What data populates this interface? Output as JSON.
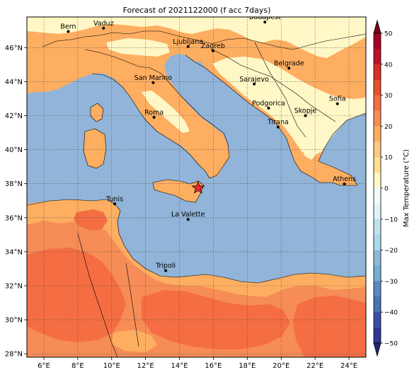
{
  "title": "Forecast of 2021122000 (f acc 7days)",
  "map": {
    "lon_range": [
      5,
      25
    ],
    "lat_range": [
      27.8,
      47.8
    ],
    "lon_ticks": [
      {
        "value": 6,
        "label": "6°E"
      },
      {
        "value": 8,
        "label": "8°E"
      },
      {
        "value": 10,
        "label": "10°E"
      },
      {
        "value": 12,
        "label": "12°E"
      },
      {
        "value": 14,
        "label": "14°E"
      },
      {
        "value": 16,
        "label": "16°E"
      },
      {
        "value": 18,
        "label": "18°E"
      },
      {
        "value": 20,
        "label": "20°E"
      },
      {
        "value": 22,
        "label": "22°E"
      },
      {
        "value": 24,
        "label": "24°E"
      }
    ],
    "lat_ticks": [
      {
        "value": 28,
        "label": "28°N"
      },
      {
        "value": 30,
        "label": "30°N"
      },
      {
        "value": 32,
        "label": "32°N"
      },
      {
        "value": 34,
        "label": "34°N"
      },
      {
        "value": 36,
        "label": "36°N"
      },
      {
        "value": 38,
        "label": "38°N"
      },
      {
        "value": 40,
        "label": "40°N"
      },
      {
        "value": 42,
        "label": "42°N"
      },
      {
        "value": 44,
        "label": "44°N"
      },
      {
        "value": 46,
        "label": "46°N"
      }
    ],
    "grid": true,
    "sea_color": "#91b4d8",
    "cities": [
      {
        "name": "Bern",
        "lon": 7.44,
        "lat": 46.95
      },
      {
        "name": "Vaduz",
        "lon": 9.52,
        "lat": 47.14
      },
      {
        "name": "Budapest",
        "lon": 19.04,
        "lat": 47.5
      },
      {
        "name": "Ljubljana",
        "lon": 14.51,
        "lat": 46.06
      },
      {
        "name": "Zagreb",
        "lon": 15.98,
        "lat": 45.81
      },
      {
        "name": "Belgrade",
        "lon": 20.46,
        "lat": 44.79
      },
      {
        "name": "San Marino",
        "lon": 12.45,
        "lat": 43.94
      },
      {
        "name": "Sarajevo",
        "lon": 18.41,
        "lat": 43.86
      },
      {
        "name": "Sofia",
        "lon": 23.32,
        "lat": 42.7
      },
      {
        "name": "Roma",
        "lon": 12.5,
        "lat": 41.9
      },
      {
        "name": "Podgorica",
        "lon": 19.26,
        "lat": 42.44
      },
      {
        "name": "Skopje",
        "lon": 21.43,
        "lat": 42.0
      },
      {
        "name": "Tirana",
        "lon": 19.82,
        "lat": 41.33
      },
      {
        "name": "Athens",
        "lon": 23.73,
        "lat": 37.98
      },
      {
        "name": "Tunis",
        "lon": 10.18,
        "lat": 36.81
      },
      {
        "name": "La Valette",
        "lon": 14.51,
        "lat": 35.9
      },
      {
        "name": "Tripoli",
        "lon": 13.19,
        "lat": 32.89
      }
    ],
    "marker": {
      "symbol": "star",
      "lon": 15.1,
      "lat": 37.75,
      "color": "#e8282b"
    }
  },
  "colorbar": {
    "label": "Max Temperature (°C)",
    "min": -50,
    "max": 50,
    "ticks": [
      {
        "value": 50,
        "label": "50"
      },
      {
        "value": 40,
        "label": "40"
      },
      {
        "value": 30,
        "label": "30"
      },
      {
        "value": 20,
        "label": "20"
      },
      {
        "value": 10,
        "label": "10"
      },
      {
        "value": 0,
        "label": "0"
      },
      {
        "value": -10,
        "label": "−10"
      },
      {
        "value": -20,
        "label": "−20"
      },
      {
        "value": -30,
        "label": "−30"
      },
      {
        "value": -40,
        "label": "−40"
      },
      {
        "value": -50,
        "label": "−50"
      }
    ],
    "bins": [
      {
        "from": 45,
        "to": 50,
        "color": "#a50026"
      },
      {
        "from": 40,
        "to": 45,
        "color": "#b81429"
      },
      {
        "from": 35,
        "to": 40,
        "color": "#d62f27"
      },
      {
        "from": 30,
        "to": 35,
        "color": "#e5512f"
      },
      {
        "from": 25,
        "to": 30,
        "color": "#f46d43"
      },
      {
        "from": 20,
        "to": 25,
        "color": "#f68c56"
      },
      {
        "from": 15,
        "to": 20,
        "color": "#fdae61"
      },
      {
        "from": 10,
        "to": 15,
        "color": "#fdc884"
      },
      {
        "from": 5,
        "to": 10,
        "color": "#fee090"
      },
      {
        "from": 0,
        "to": 5,
        "color": "#fff7c6"
      },
      {
        "from": -5,
        "to": 0,
        "color": "#f1f9fb"
      },
      {
        "from": -10,
        "to": -5,
        "color": "#e0f3f8"
      },
      {
        "from": -15,
        "to": -10,
        "color": "#bfe0ec"
      },
      {
        "from": -20,
        "to": -15,
        "color": "#abd9e9"
      },
      {
        "from": -25,
        "to": -20,
        "color": "#8db8d8"
      },
      {
        "from": -30,
        "to": -25,
        "color": "#74add1"
      },
      {
        "from": -35,
        "to": -30,
        "color": "#5a88c0"
      },
      {
        "from": -40,
        "to": -35,
        "color": "#4575b4"
      },
      {
        "from": -45,
        "to": -40,
        "color": "#3a4fa3"
      },
      {
        "from": -50,
        "to": -45,
        "color": "#313695"
      }
    ],
    "over_color": "#7a0018",
    "under_color": "#1f2a6b"
  },
  "field_colors": {
    "cold_alpine": "#fff7c6",
    "mild": "#fdae61",
    "warm": "#f68c56",
    "hot": "#f46d43"
  }
}
